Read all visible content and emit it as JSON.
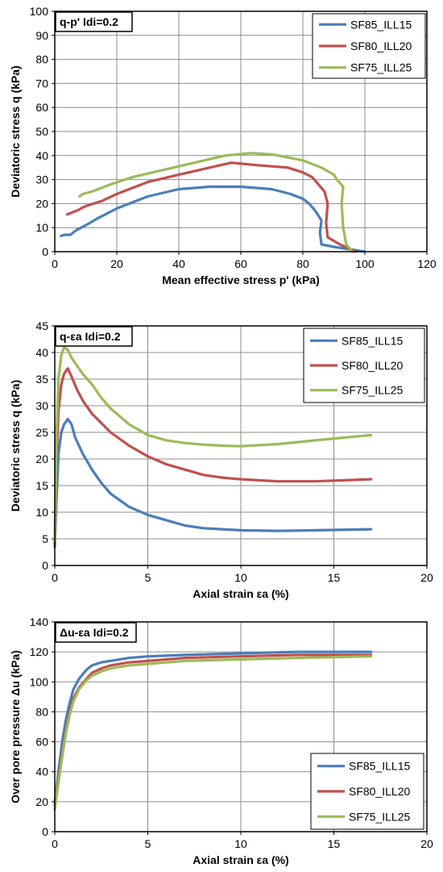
{
  "series_colors": {
    "SF85_ILL15": "#4a7ebb",
    "SF80_ILL20": "#c0504d",
    "SF75_ILL25": "#9bbb59"
  },
  "chart_data": [
    {
      "type": "line",
      "title": "q-p' Idi=0.2",
      "xlabel": "Mean effective stress p' (kPa)",
      "ylabel": "Deviatoric stress q (kPa)",
      "xlim": [
        0,
        120
      ],
      "ylim": [
        0,
        100
      ],
      "xticks": [
        "0",
        "20",
        "40",
        "60",
        "80",
        "100",
        "120"
      ],
      "yticks": [
        "0",
        "10",
        "20",
        "30",
        "40",
        "50",
        "60",
        "70",
        "80",
        "90",
        "100"
      ],
      "grid": true,
      "legend": "top-right",
      "series": [
        {
          "name": "SF85_ILL15",
          "x": [
            100,
            95,
            90,
            86,
            85.5,
            86,
            84,
            82,
            80,
            76,
            70,
            60,
            50,
            40,
            30,
            20,
            14,
            10,
            7,
            5,
            3,
            2
          ],
          "y": [
            0,
            1,
            2,
            3,
            8,
            13,
            17,
            20,
            22,
            24,
            26,
            27,
            27,
            26,
            23,
            18,
            14,
            11,
            9,
            7,
            7,
            6.5
          ]
        },
        {
          "name": "SF80_ILL20",
          "x": [
            97,
            92,
            88,
            87.5,
            88,
            87,
            85,
            83,
            80,
            75,
            65,
            57,
            50,
            40,
            30,
            20,
            15,
            10,
            7,
            4
          ],
          "y": [
            0,
            3,
            6,
            12,
            20,
            25,
            28,
            31,
            33,
            35,
            36,
            37,
            35,
            32,
            29,
            24,
            21,
            19,
            17,
            15.5
          ]
        },
        {
          "name": "SF75_ILL25",
          "x": [
            96,
            94,
            93,
            92.5,
            93,
            91,
            90,
            86,
            80,
            70,
            63,
            55,
            45,
            35,
            25,
            18,
            12,
            9,
            8
          ],
          "y": [
            0,
            3,
            10,
            20,
            27,
            30,
            32,
            35,
            38,
            40.5,
            41,
            40,
            37,
            34,
            31,
            28,
            25,
            24,
            23
          ]
        }
      ]
    },
    {
      "type": "line",
      "title": "q-εa Idi=0.2",
      "xlabel": "Axial strain εa (%)",
      "ylabel": "Deviatoric stress q (kPa)",
      "xlim": [
        0,
        20
      ],
      "ylim": [
        0,
        45
      ],
      "xticks": [
        "0",
        "5",
        "10",
        "15",
        "20"
      ],
      "yticks": [
        "0",
        "5",
        "10",
        "15",
        "20",
        "25",
        "30",
        "35",
        "40",
        "45"
      ],
      "grid": true,
      "legend": "top-right",
      "series": [
        {
          "name": "SF85_ILL15",
          "x": [
            0,
            0.1,
            0.2,
            0.35,
            0.5,
            0.7,
            0.9,
            1.1,
            1.5,
            2,
            2.5,
            3,
            4,
            5,
            6,
            7,
            8,
            9,
            10,
            12,
            14,
            17
          ],
          "y": [
            3.5,
            13,
            21,
            25,
            26.5,
            27.5,
            26.5,
            24,
            21,
            18,
            15.5,
            13.5,
            11,
            9.5,
            8.5,
            7.5,
            7,
            6.8,
            6.6,
            6.5,
            6.6,
            6.8
          ]
        },
        {
          "name": "SF80_ILL20",
          "x": [
            0,
            0.1,
            0.2,
            0.35,
            0.5,
            0.7,
            0.9,
            1.2,
            1.5,
            2,
            3,
            4,
            5,
            6,
            7,
            8,
            9,
            10,
            12,
            14,
            17
          ],
          "y": [
            4,
            20,
            29,
            34,
            36,
            37,
            35.5,
            33,
            31,
            28.5,
            25,
            22.5,
            20.5,
            19,
            18,
            17,
            16.5,
            16.2,
            15.8,
            15.8,
            16.2
          ]
        },
        {
          "name": "SF75_ILL25",
          "x": [
            0,
            0.1,
            0.2,
            0.35,
            0.5,
            0.7,
            0.9,
            1.2,
            1.5,
            2,
            2.5,
            3,
            4,
            5,
            6,
            7,
            8,
            9,
            10,
            12,
            14,
            17
          ],
          "y": [
            4.5,
            25,
            35,
            39.5,
            41,
            40.5,
            39,
            37.5,
            36,
            34,
            31.5,
            29.5,
            26.5,
            24.5,
            23.5,
            23,
            22.7,
            22.5,
            22.4,
            22.8,
            23.5,
            24.5
          ]
        }
      ]
    },
    {
      "type": "line",
      "title": "Δu-εa Idi=0.2",
      "xlabel": "Axial strain εa (%)",
      "ylabel": "Over pore pressure Δu (kPa)",
      "xlim": [
        0,
        20
      ],
      "ylim": [
        0,
        140
      ],
      "xticks": [
        "0",
        "5",
        "10",
        "15",
        "20"
      ],
      "yticks": [
        "0",
        "20",
        "40",
        "60",
        "80",
        "100",
        "120",
        "140"
      ],
      "grid": true,
      "legend": "bottom-right",
      "series": [
        {
          "name": "SF85_ILL15",
          "x": [
            0,
            0.2,
            0.4,
            0.6,
            0.8,
            1,
            1.3,
            1.7,
            2,
            2.5,
            3,
            4,
            5,
            7,
            10,
            13,
            17
          ],
          "y": [
            18,
            40,
            60,
            75,
            86,
            95,
            102,
            108,
            111,
            113,
            114,
            116,
            117,
            118,
            119,
            120,
            120
          ]
        },
        {
          "name": "SF80_ILL20",
          "x": [
            0,
            0.2,
            0.4,
            0.6,
            0.8,
            1,
            1.3,
            1.7,
            2,
            2.5,
            3,
            4,
            5,
            7,
            10,
            13,
            17
          ],
          "y": [
            20,
            35,
            52,
            68,
            80,
            89,
            96,
            102,
            106,
            109,
            111,
            113,
            114,
            116,
            117,
            118,
            118
          ]
        },
        {
          "name": "SF75_ILL25",
          "x": [
            0,
            0.2,
            0.4,
            0.6,
            0.8,
            1,
            1.3,
            1.7,
            2,
            2.5,
            3,
            4,
            5,
            7,
            10,
            13,
            17
          ],
          "y": [
            15,
            33,
            50,
            66,
            78,
            87,
            95,
            101,
            104,
            107,
            109,
            111,
            112,
            114,
            115,
            116,
            117
          ]
        }
      ]
    }
  ]
}
